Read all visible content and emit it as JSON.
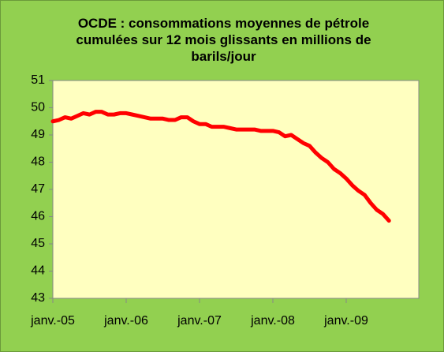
{
  "chart_data": {
    "type": "line",
    "title": "OCDE : consommations moyennes de pétrole cumulées sur 12 mois glissants en millions de barils/jour",
    "categories": [
      "janv.-05",
      null,
      null,
      null,
      null,
      null,
      null,
      null,
      null,
      null,
      null,
      null,
      "janv.-06",
      null,
      null,
      null,
      null,
      null,
      null,
      null,
      null,
      null,
      null,
      null,
      "janv.-07",
      null,
      null,
      null,
      null,
      null,
      null,
      null,
      null,
      null,
      null,
      null,
      "janv.-08",
      null,
      null,
      null,
      null,
      null,
      null,
      null,
      null,
      null,
      null,
      null,
      "janv.-09",
      null,
      null,
      null,
      null,
      null,
      null,
      null
    ],
    "series": [
      {
        "color": "#ff0000",
        "values": [
          49.5,
          49.55,
          49.65,
          49.6,
          49.7,
          49.8,
          49.75,
          49.85,
          49.85,
          49.75,
          49.75,
          49.8,
          49.8,
          49.75,
          49.7,
          49.65,
          49.6,
          49.6,
          49.6,
          49.55,
          49.55,
          49.65,
          49.65,
          49.5,
          49.4,
          49.4,
          49.3,
          49.3,
          49.3,
          49.25,
          49.2,
          49.2,
          49.2,
          49.2,
          49.15,
          49.15,
          49.15,
          49.1,
          48.95,
          49.0,
          48.85,
          48.7,
          48.6,
          48.35,
          48.15,
          48.0,
          47.75,
          47.6,
          47.4,
          47.15,
          46.95,
          46.8,
          46.5,
          46.25,
          46.1,
          45.85
        ]
      }
    ],
    "ylim": [
      43,
      51
    ],
    "yticks": [
      43,
      44,
      45,
      46,
      47,
      48,
      49,
      50,
      51
    ],
    "grid": false
  }
}
